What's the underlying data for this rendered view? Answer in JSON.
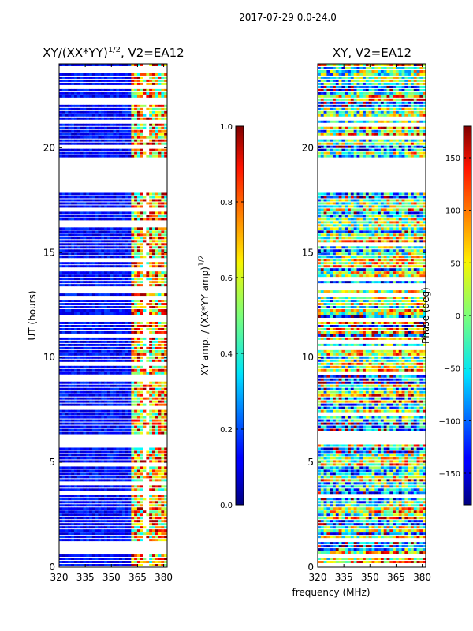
{
  "suptitle": "2017-07-29 0.0-24.0",
  "colors": {
    "cmap": "jet",
    "gap": "#ffffff",
    "frame": "#000000"
  },
  "chart_data": [
    {
      "type": "heatmap",
      "title": "XY/(XX*YY)",
      "title_sup": "1/2",
      "title_suffix": ", V2=EA12",
      "xlabel": "",
      "ylabel": "UT (hours)",
      "xlim": [
        320,
        382
      ],
      "ylim": [
        0,
        24
      ],
      "xticks": [
        320,
        335,
        350,
        365,
        380
      ],
      "yticks": [
        0,
        5,
        10,
        15,
        20
      ],
      "colorbar": {
        "label": "XY amp. / (XX*YY amp)",
        "label_sup": "1/2",
        "range": [
          0.0,
          1.0
        ],
        "ticks": [
          0.0,
          0.2,
          0.4,
          0.6,
          0.8,
          1.0
        ],
        "ticklabels": [
          "0.0",
          "0.2",
          "0.4",
          "0.6",
          "0.8",
          "1.0"
        ]
      },
      "data_gap_hours": [
        [
          5.7,
          6.3
        ],
        [
          17.9,
          19.5
        ]
      ],
      "notes": "low normalized amplitude (~0.05-0.2) at 320-360 MHz; high, variable amplitude (~0.4-1.0) at 362-380 MHz"
    },
    {
      "type": "heatmap",
      "title": "XY, V2=EA12",
      "xlabel": "frequency (MHz)",
      "ylabel": "",
      "xlim": [
        320,
        382
      ],
      "ylim": [
        0,
        24
      ],
      "xticks": [
        320,
        335,
        350,
        365,
        380
      ],
      "yticks": [
        0,
        5,
        10,
        15,
        20
      ],
      "colorbar": {
        "label": "Phase (deg)",
        "range": [
          -180,
          180
        ],
        "ticks": [
          -150,
          -100,
          -50,
          0,
          50,
          100,
          150
        ],
        "ticklabels": [
          "−150",
          "−100",
          "−50",
          "0",
          "50",
          "100",
          "150"
        ]
      },
      "data_gap_hours": [
        [
          5.8,
          6.4
        ],
        [
          17.9,
          19.5
        ]
      ],
      "notes": "phase wraps across full range (-180 to 180 deg), dense horizontal striping"
    }
  ]
}
